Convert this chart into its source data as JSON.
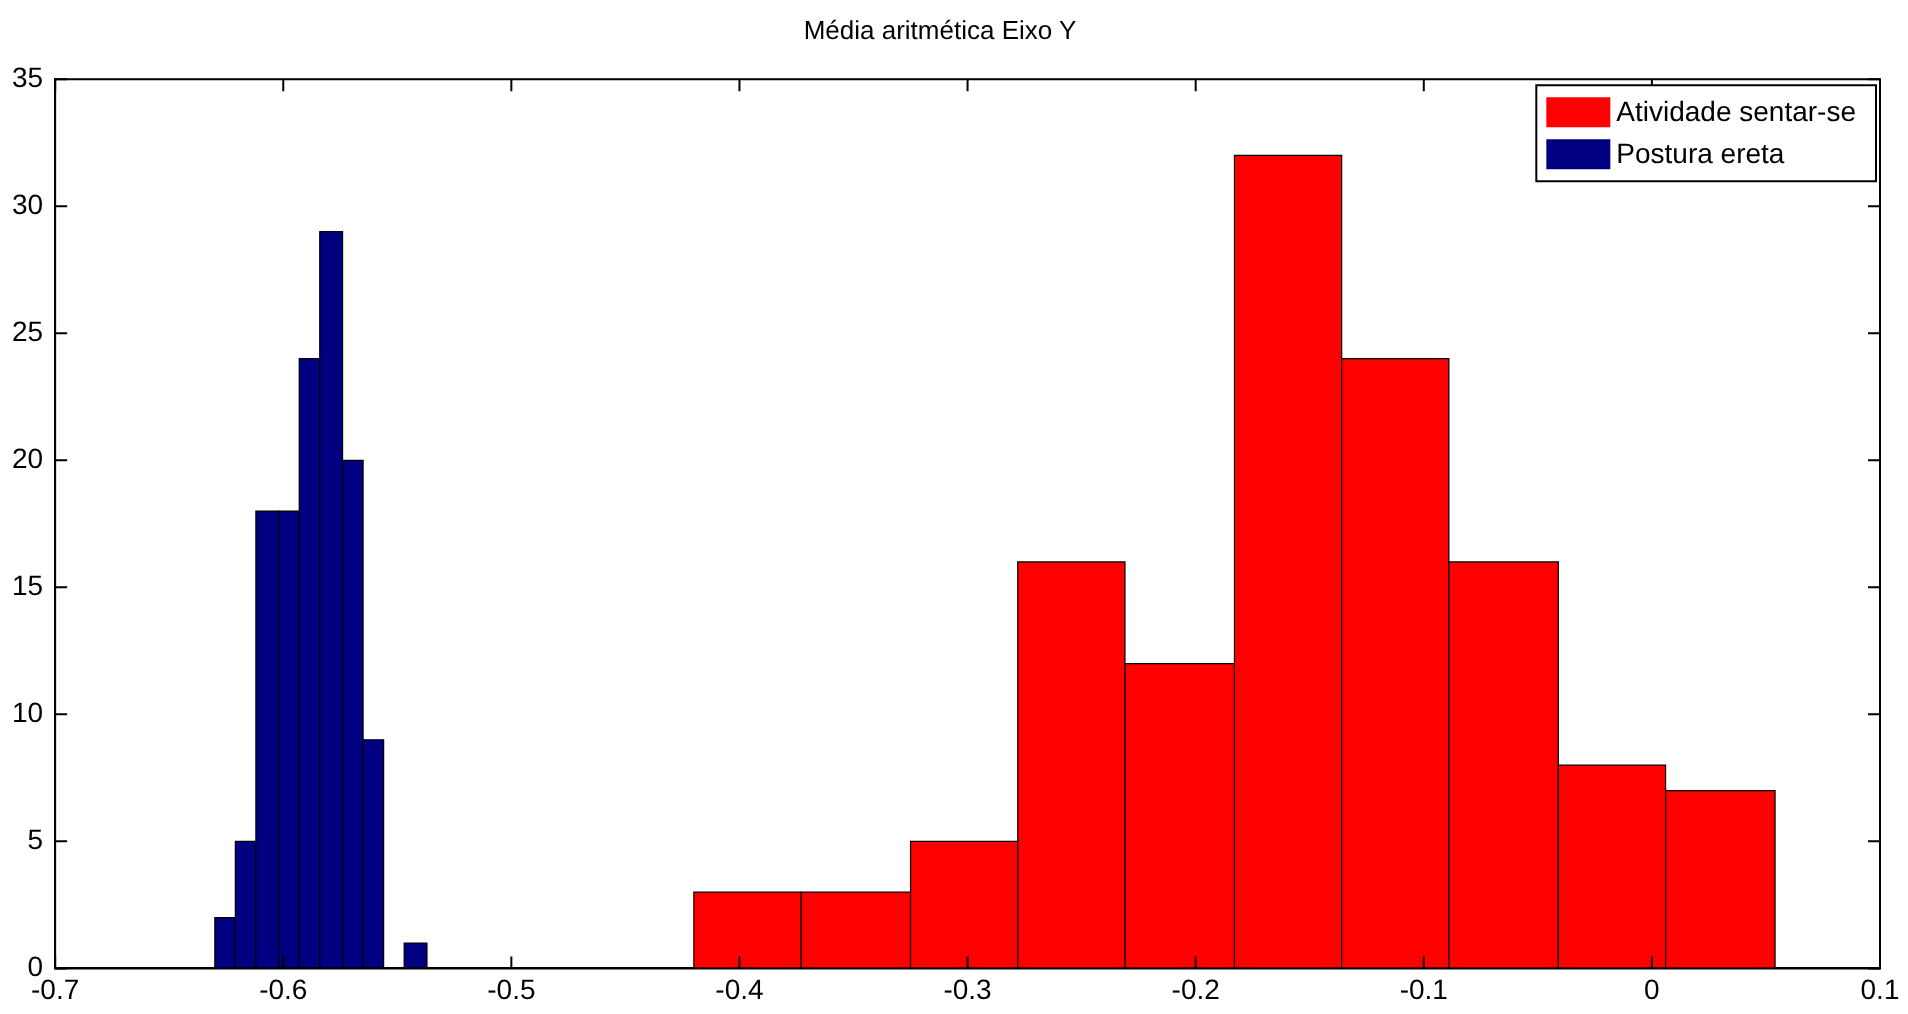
{
  "chart_data": {
    "type": "histogram",
    "title": "Média aritmética Eixo Y",
    "bins": [
      -0.42,
      -0.373,
      -0.325,
      -0.278,
      -0.231,
      -0.183,
      -0.136,
      -0.089,
      -0.041,
      0.006,
      0.054
    ],
    "series": [
      {
        "name": "Atividade sentar-se",
        "color": "#ff0000",
        "values": [
          3,
          3,
          5,
          16,
          12,
          32,
          24,
          16,
          8,
          7
        ]
      },
      {
        "name": "Postura ereta",
        "color": "#000080",
        "bins": [
          -0.63,
          -0.621,
          -0.612,
          -0.602,
          -0.593,
          -0.584,
          -0.574,
          -0.565,
          -0.556,
          -0.547,
          -0.537
        ],
        "values": [
          2,
          5,
          18,
          18,
          24,
          29,
          20,
          9,
          0,
          1
        ]
      }
    ],
    "xlim": [
      -0.7,
      0.1
    ],
    "xticks": [
      -0.7,
      -0.6,
      -0.5,
      -0.4,
      -0.3,
      -0.2,
      -0.1,
      0,
      0.1
    ],
    "ylim": [
      0,
      35
    ],
    "yticks": [
      0,
      5,
      10,
      15,
      20,
      25,
      30,
      35
    ],
    "grid": false,
    "legend": "top right"
  }
}
